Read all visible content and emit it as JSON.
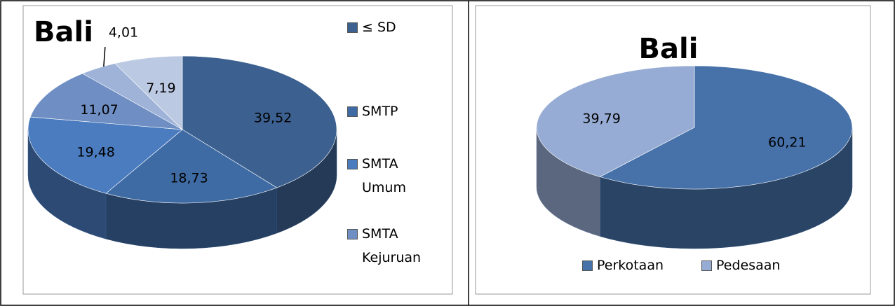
{
  "chart_data": [
    {
      "type": "pie",
      "title": "Bali",
      "categories": [
        "≤ SD",
        "SMTP",
        "SMTA Umum",
        "SMTA Kejuruan",
        null,
        null
      ],
      "values": [
        39.52,
        18.73,
        19.48,
        11.07,
        4.01,
        7.19
      ],
      "value_labels": [
        "39,52",
        "18,73",
        "19,48",
        "11,07",
        "4,01",
        "7,19"
      ],
      "colors": [
        "#3c6191",
        "#3f6ba5",
        "#4a7cbf",
        "#6f8fc4",
        "#9fb3d8",
        "#bcc9e2"
      ],
      "legend": "right"
    },
    {
      "type": "pie",
      "title": "Bali",
      "categories": [
        "Perkotaan",
        "Pedesaan"
      ],
      "values": [
        60.21,
        39.79
      ],
      "value_labels": [
        "60,21",
        "39,79"
      ],
      "colors": [
        "#4671a9",
        "#97acd4"
      ],
      "legend": "bottom"
    }
  ]
}
